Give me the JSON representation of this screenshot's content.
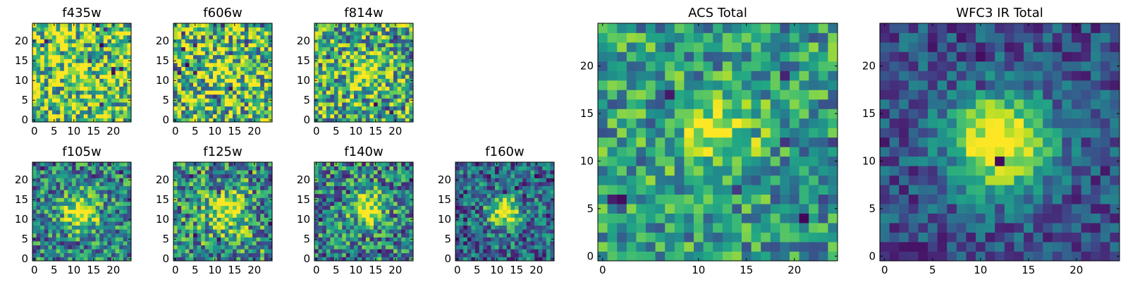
{
  "figure": {
    "title": ""
  },
  "chart_data": [
    {
      "type": "heatmap",
      "title": "f435w",
      "nx": 25,
      "ny": 25,
      "xlim": [
        0,
        24
      ],
      "ylim": [
        0,
        24
      ],
      "xticks": [
        0,
        5,
        10,
        15,
        20
      ],
      "yticks": [
        0,
        5,
        10,
        15,
        20
      ],
      "colormap": "viridis",
      "seed": 11,
      "peak": [
        11,
        12
      ],
      "signal": 0.25,
      "sigma": 1.8,
      "noise": 0.9,
      "bias": 0.75,
      "hot_pixels": 10
    },
    {
      "type": "heatmap",
      "title": "f606w",
      "nx": 25,
      "ny": 25,
      "xlim": [
        0,
        24
      ],
      "ylim": [
        0,
        24
      ],
      "xticks": [
        0,
        5,
        10,
        15,
        20
      ],
      "yticks": [
        0,
        5,
        10,
        15,
        20
      ],
      "colormap": "viridis",
      "seed": 23,
      "peak": [
        12,
        12
      ],
      "signal": 0.3,
      "sigma": 2.5,
      "noise": 0.95,
      "bias": 0.7,
      "hot_pixels": 14
    },
    {
      "type": "heatmap",
      "title": "f814w",
      "nx": 25,
      "ny": 25,
      "xlim": [
        0,
        24
      ],
      "ylim": [
        0,
        24
      ],
      "xticks": [
        0,
        5,
        10,
        15,
        20
      ],
      "yticks": [
        0,
        5,
        10,
        15,
        20
      ],
      "colormap": "viridis",
      "seed": 37,
      "peak": [
        13,
        12
      ],
      "signal": 0.45,
      "sigma": 2.6,
      "noise": 0.85,
      "bias": 0.62,
      "hot_pixels": 9
    },
    {
      "type": "heatmap",
      "title": "f105w",
      "nx": 25,
      "ny": 25,
      "xlim": [
        0,
        24
      ],
      "ylim": [
        0,
        24
      ],
      "xticks": [
        0,
        5,
        10,
        15,
        20
      ],
      "yticks": [
        0,
        5,
        10,
        15,
        20
      ],
      "colormap": "viridis",
      "seed": 41,
      "peak": [
        12,
        12
      ],
      "signal": 0.6,
      "sigma": 3.2,
      "noise": 0.7,
      "bias": 0.45,
      "hot_pixels": 6
    },
    {
      "type": "heatmap",
      "title": "f125w",
      "nx": 25,
      "ny": 25,
      "xlim": [
        0,
        24
      ],
      "ylim": [
        0,
        24
      ],
      "xticks": [
        0,
        5,
        10,
        15,
        20
      ],
      "yticks": [
        0,
        5,
        10,
        15,
        20
      ],
      "colormap": "viridis",
      "seed": 53,
      "peak": [
        13,
        12
      ],
      "signal": 0.5,
      "sigma": 3.5,
      "noise": 0.8,
      "bias": 0.5,
      "hot_pixels": 7
    },
    {
      "type": "heatmap",
      "title": "f140w",
      "nx": 25,
      "ny": 25,
      "xlim": [
        0,
        24
      ],
      "ylim": [
        0,
        24
      ],
      "xticks": [
        0,
        5,
        10,
        15,
        20
      ],
      "yticks": [
        0,
        5,
        10,
        15,
        20
      ],
      "colormap": "viridis",
      "seed": 67,
      "peak": [
        13,
        13
      ],
      "signal": 0.6,
      "sigma": 3.0,
      "noise": 0.75,
      "bias": 0.45,
      "hot_pixels": 7
    },
    {
      "type": "heatmap",
      "title": "f160w",
      "nx": 25,
      "ny": 25,
      "xlim": [
        0,
        24
      ],
      "ylim": [
        0,
        24
      ],
      "xticks": [
        0,
        5,
        10,
        15,
        20
      ],
      "yticks": [
        0,
        5,
        10,
        15,
        20
      ],
      "colormap": "viridis",
      "seed": 79,
      "peak": [
        12,
        12
      ],
      "signal": 0.7,
      "sigma": 2.8,
      "noise": 0.65,
      "bias": 0.35,
      "hot_pixels": 9
    },
    {
      "type": "heatmap",
      "title": "ACS Total",
      "nx": 25,
      "ny": 25,
      "xlim": [
        0,
        24
      ],
      "ylim": [
        0,
        24
      ],
      "xticks": [
        0,
        10,
        15,
        20
      ],
      "yticks": [
        0,
        5,
        10,
        15,
        20
      ],
      "xtick_labels_shown": [
        "0",
        "10",
        "15",
        "20"
      ],
      "colormap": "viridis",
      "seed": 83,
      "peak": [
        12,
        13
      ],
      "signal": 0.45,
      "sigma": 2.6,
      "noise": 0.6,
      "bias": 0.55,
      "hot_pixels": 9
    },
    {
      "type": "heatmap",
      "title": "WFC3 IR Total",
      "nx": 25,
      "ny": 25,
      "xlim": [
        0,
        24
      ],
      "ylim": [
        0,
        24
      ],
      "xticks": [
        0,
        5,
        10,
        15,
        20
      ],
      "yticks": [
        0,
        5,
        10,
        15,
        20
      ],
      "colormap": "viridis",
      "seed": 97,
      "peak": [
        12,
        12
      ],
      "signal": 0.85,
      "sigma": 3.6,
      "noise": 0.4,
      "bias": 0.25,
      "hot_pixels": 8
    }
  ]
}
